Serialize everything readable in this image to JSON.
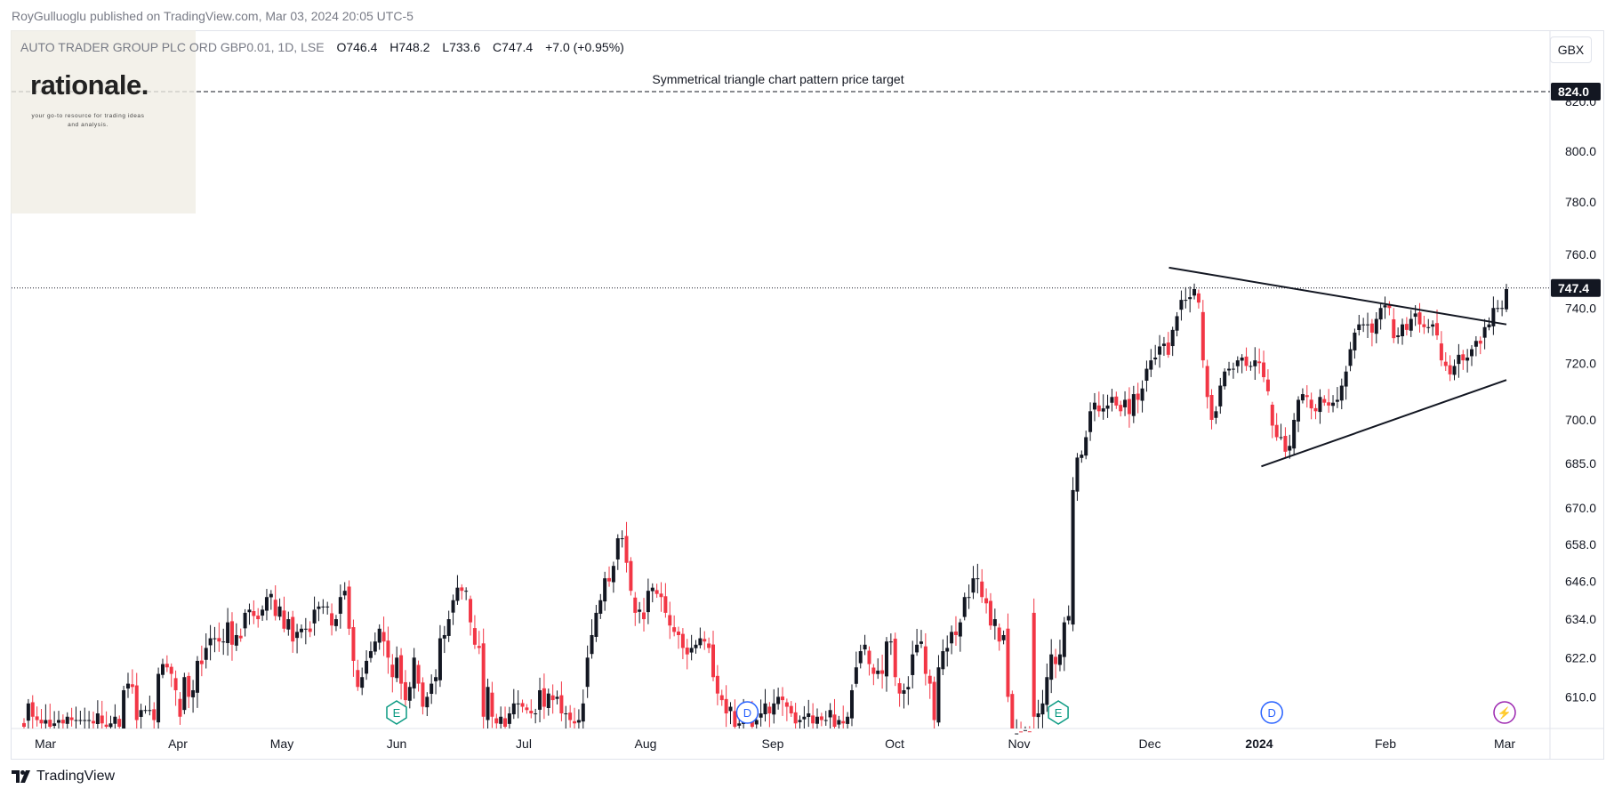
{
  "publisher": "RoyGulluoglu published on TradingView.com, Mar 03, 2024 20:05 UTC-5",
  "symbol": {
    "name": "AUTO TRADER GROUP PLC ORD GBP0.01, 1D, LSE",
    "open": "O746.4",
    "high": "H748.2",
    "low": "L733.6",
    "close": "C747.4",
    "change": "+7.0 (+0.95%)"
  },
  "currency_button": "GBX",
  "watermark": {
    "title": "rationale.",
    "subtitle": "your go-to resource for trading ideas and analysis."
  },
  "footer": {
    "brand": "TradingView"
  },
  "colors": {
    "up": "#131722",
    "down": "#f23645",
    "marker_teal": "#089981",
    "marker_blue": "#2962ff",
    "marker_purple": "#9c27b0"
  },
  "chart_data": {
    "type": "candlestick",
    "y_scale": "log",
    "y_range": [
      601,
      834
    ],
    "y_ticks": [
      610.0,
      622.0,
      634.0,
      646.0,
      658.0,
      670.0,
      685.0,
      700.0,
      720.0,
      740.0,
      760.0,
      780.0,
      800.0,
      820.0
    ],
    "x_ticks": [
      "Mar",
      "Apr",
      "May",
      "Jun",
      "Jul",
      "Aug",
      "Sep",
      "Oct",
      "Nov",
      "Dec",
      "2024",
      "Feb",
      "Mar"
    ],
    "x_ticks_bold": [
      "2024"
    ],
    "last_price": 747.4,
    "target_price": 824.0,
    "target_label": "Symmetrical triangle chart pattern price target",
    "price_labels": [
      "824.0",
      "747.4"
    ],
    "event_markers": [
      {
        "label": "E",
        "month_index": 3.0
      },
      {
        "label": "D",
        "month_index": 5.8
      },
      {
        "label": "E",
        "month_index": 8.3
      },
      {
        "label": "D",
        "month_index": 10.1
      },
      {
        "label": "⚡",
        "month_index": 12.0
      }
    ],
    "trendlines": [
      {
        "name": "upper",
        "from": {
          "x": "2023-12-11",
          "y": 755
        },
        "to": {
          "x": "2024-03-04",
          "y": 734
        }
      },
      {
        "name": "lower",
        "from": {
          "x": "2024-01-03",
          "y": 684
        },
        "to": {
          "x": "2024-03-04",
          "y": 714
        }
      }
    ],
    "closes": [
      601,
      608,
      604,
      603,
      602,
      603,
      601,
      602,
      603,
      602,
      604,
      603,
      603,
      603,
      603,
      603,
      602,
      605,
      602,
      601,
      602,
      604,
      601,
      612,
      614,
      613,
      603,
      606,
      606,
      606,
      603,
      617,
      620,
      619,
      617,
      612,
      604,
      616,
      610,
      612,
      621,
      620,
      625,
      628,
      628,
      627,
      627,
      633,
      626,
      629,
      628,
      636,
      637,
      635,
      634,
      637,
      641,
      642,
      635,
      638,
      631,
      634,
      627,
      630,
      631,
      631,
      630,
      637,
      638,
      638,
      638,
      632,
      634,
      641,
      643,
      631,
      621,
      613,
      616,
      621,
      624,
      627,
      631,
      627,
      622,
      616,
      622,
      614,
      609,
      613,
      622,
      614,
      607,
      610,
      614,
      616,
      628,
      629,
      634,
      640,
      644,
      643,
      643,
      633,
      626,
      625,
      604,
      613,
      604,
      602,
      604,
      601,
      605,
      608,
      608,
      607,
      606,
      605,
      605,
      612,
      607,
      611,
      609,
      610,
      605,
      605,
      603,
      602,
      603,
      608,
      622,
      629,
      636,
      640,
      647,
      646,
      651,
      660,
      660,
      652,
      643,
      636,
      637,
      634,
      643,
      644,
      642,
      641,
      636,
      632,
      630,
      629,
      625,
      623,
      625,
      626,
      628,
      627,
      625,
      616,
      611,
      609,
      605,
      607,
      601,
      602,
      606,
      605,
      601,
      603,
      605,
      608,
      605,
      608,
      610,
      609,
      607,
      605,
      602,
      603,
      604,
      605,
      602,
      604,
      603,
      603,
      606,
      601,
      603,
      602,
      604,
      612,
      619,
      624,
      626,
      620,
      617,
      618,
      617,
      627,
      627,
      616,
      611,
      612,
      613,
      623,
      626,
      627,
      617,
      614,
      603,
      619,
      624,
      625,
      630,
      629,
      633,
      641,
      641,
      647,
      647,
      641,
      639,
      632,
      634,
      627,
      629,
      610,
      597,
      599,
      594,
      600,
      599,
      604,
      605,
      608,
      616,
      623,
      620,
      623,
      633,
      635,
      676,
      687,
      688,
      694,
      703,
      706,
      703,
      704,
      705,
      708,
      705,
      703,
      707,
      702,
      709,
      707,
      711,
      718,
      721,
      722,
      726,
      727,
      723,
      732,
      737,
      743,
      743,
      744,
      747,
      742,
      721,
      708,
      700,
      703,
      712,
      717,
      718,
      718,
      721,
      722,
      719,
      719,
      721,
      720,
      715,
      710,
      698,
      694,
      694,
      689,
      691,
      700,
      707,
      709,
      708,
      704,
      703,
      708,
      706,
      705,
      706,
      707,
      712,
      717,
      725,
      731,
      734,
      734,
      734,
      731,
      736,
      740,
      741,
      740,
      729,
      730,
      734,
      732,
      736,
      738,
      734,
      733,
      733,
      734,
      730,
      721,
      719,
      716,
      719,
      723,
      721,
      722,
      725,
      728,
      727,
      733,
      734,
      740,
      740,
      740,
      747
    ]
  }
}
